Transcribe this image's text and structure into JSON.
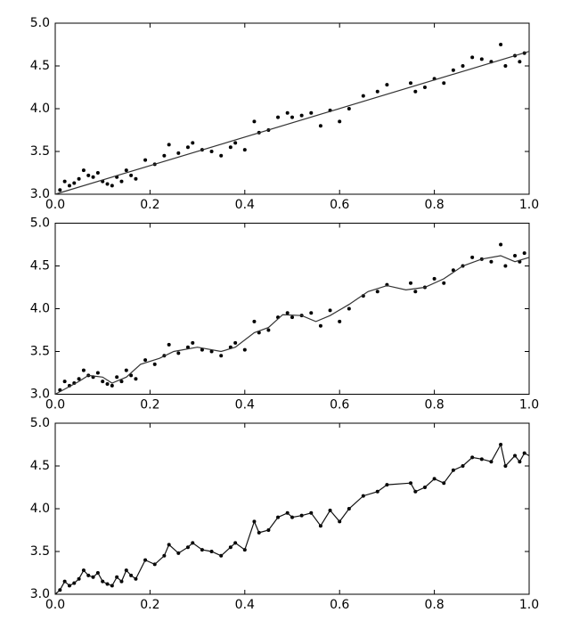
{
  "chart_data": [
    {
      "type": "scatter",
      "xlim": [
        0,
        1
      ],
      "ylim": [
        3,
        5
      ],
      "xticks": [
        {
          "value": 0,
          "label": "0.0"
        },
        0.2,
        0.4,
        0.6,
        0.8,
        {
          "value": 1,
          "label": "1.0"
        }
      ],
      "yticks": [
        {
          "value": 3,
          "label": "3.0"
        },
        3.5,
        {
          "value": 4,
          "label": "4.0"
        },
        4.5,
        {
          "value": 5,
          "label": "5.0"
        }
      ],
      "series": [
        {
          "type": "scatter",
          "color": "#000000",
          "x": [
            0.01,
            0.02,
            0.03,
            0.04,
            0.05,
            0.06,
            0.07,
            0.08,
            0.09,
            0.1,
            0.11,
            0.12,
            0.13,
            0.14,
            0.15,
            0.16,
            0.17,
            0.19,
            0.21,
            0.23,
            0.24,
            0.26,
            0.28,
            0.29,
            0.31,
            0.33,
            0.35,
            0.37,
            0.38,
            0.4,
            0.42,
            0.43,
            0.45,
            0.47,
            0.49,
            0.5,
            0.52,
            0.54,
            0.56,
            0.58,
            0.6,
            0.62,
            0.65,
            0.68,
            0.7,
            0.75,
            0.76,
            0.78,
            0.8,
            0.82,
            0.84,
            0.86,
            0.88,
            0.9,
            0.92,
            0.94,
            0.95,
            0.97,
            0.98,
            0.99
          ],
          "values": [
            3.05,
            3.15,
            3.1,
            3.13,
            3.18,
            3.28,
            3.22,
            3.2,
            3.25,
            3.15,
            3.12,
            3.1,
            3.2,
            3.15,
            3.28,
            3.22,
            3.18,
            3.4,
            3.35,
            3.45,
            3.58,
            3.48,
            3.55,
            3.6,
            3.52,
            3.5,
            3.45,
            3.55,
            3.6,
            3.52,
            3.85,
            3.72,
            3.75,
            3.9,
            3.95,
            3.9,
            3.92,
            3.95,
            3.8,
            3.98,
            3.85,
            4.0,
            4.15,
            4.2,
            4.28,
            4.3,
            4.2,
            4.25,
            4.35,
            4.3,
            4.45,
            4.5,
            4.6,
            4.58,
            4.55,
            4.75,
            4.5,
            4.62,
            4.55,
            4.65
          ]
        },
        {
          "type": "line",
          "color": "#333333",
          "x": [
            0,
            1
          ],
          "values": [
            3.0,
            4.67
          ]
        }
      ]
    },
    {
      "type": "scatter",
      "xlim": [
        0,
        1
      ],
      "ylim": [
        3,
        5
      ],
      "xticks": [
        {
          "value": 0,
          "label": "0.0"
        },
        0.2,
        0.4,
        0.6,
        0.8,
        {
          "value": 1,
          "label": "1.0"
        }
      ],
      "yticks": [
        {
          "value": 3,
          "label": "3.0"
        },
        3.5,
        {
          "value": 4,
          "label": "4.0"
        },
        4.5,
        {
          "value": 5,
          "label": "5.0"
        }
      ],
      "series": [
        {
          "type": "scatter",
          "color": "#000000",
          "x": [
            0.01,
            0.02,
            0.03,
            0.04,
            0.05,
            0.06,
            0.07,
            0.08,
            0.09,
            0.1,
            0.11,
            0.12,
            0.13,
            0.14,
            0.15,
            0.16,
            0.17,
            0.19,
            0.21,
            0.23,
            0.24,
            0.26,
            0.28,
            0.29,
            0.31,
            0.33,
            0.35,
            0.37,
            0.38,
            0.4,
            0.42,
            0.43,
            0.45,
            0.47,
            0.49,
            0.5,
            0.52,
            0.54,
            0.56,
            0.58,
            0.6,
            0.62,
            0.65,
            0.68,
            0.7,
            0.75,
            0.76,
            0.78,
            0.8,
            0.82,
            0.84,
            0.86,
            0.88,
            0.9,
            0.92,
            0.94,
            0.95,
            0.97,
            0.98,
            0.99
          ],
          "values": [
            3.05,
            3.15,
            3.1,
            3.13,
            3.18,
            3.28,
            3.22,
            3.2,
            3.25,
            3.15,
            3.12,
            3.1,
            3.2,
            3.15,
            3.28,
            3.22,
            3.18,
            3.4,
            3.35,
            3.45,
            3.58,
            3.48,
            3.55,
            3.6,
            3.52,
            3.5,
            3.45,
            3.55,
            3.6,
            3.52,
            3.85,
            3.72,
            3.75,
            3.9,
            3.95,
            3.9,
            3.92,
            3.95,
            3.8,
            3.98,
            3.85,
            4.0,
            4.15,
            4.2,
            4.28,
            4.3,
            4.2,
            4.25,
            4.35,
            4.3,
            4.45,
            4.5,
            4.6,
            4.58,
            4.55,
            4.75,
            4.5,
            4.62,
            4.55,
            4.65
          ]
        },
        {
          "type": "line",
          "color": "#333333",
          "x": [
            0,
            0.05,
            0.07,
            0.1,
            0.12,
            0.15,
            0.18,
            0.22,
            0.25,
            0.3,
            0.35,
            0.38,
            0.42,
            0.45,
            0.48,
            0.52,
            0.55,
            0.58,
            0.62,
            0.66,
            0.7,
            0.74,
            0.78,
            0.82,
            0.86,
            0.9,
            0.94,
            0.97,
            1.0
          ],
          "values": [
            3.0,
            3.15,
            3.22,
            3.2,
            3.13,
            3.2,
            3.35,
            3.42,
            3.5,
            3.55,
            3.5,
            3.55,
            3.72,
            3.78,
            3.93,
            3.92,
            3.85,
            3.92,
            4.05,
            4.2,
            4.27,
            4.22,
            4.25,
            4.35,
            4.5,
            4.58,
            4.62,
            4.55,
            4.6
          ]
        }
      ]
    },
    {
      "type": "scatter",
      "xlim": [
        0,
        1
      ],
      "ylim": [
        3,
        5
      ],
      "xticks": [
        {
          "value": 0,
          "label": "0.0"
        },
        0.2,
        0.4,
        0.6,
        0.8,
        {
          "value": 1,
          "label": "1.0"
        }
      ],
      "yticks": [
        {
          "value": 3,
          "label": "3.0"
        },
        3.5,
        {
          "value": 4,
          "label": "4.0"
        },
        4.5,
        {
          "value": 5,
          "label": "5.0"
        }
      ],
      "series": [
        {
          "type": "scatter",
          "color": "#000000",
          "x": [
            0.01,
            0.02,
            0.03,
            0.04,
            0.05,
            0.06,
            0.07,
            0.08,
            0.09,
            0.1,
            0.11,
            0.12,
            0.13,
            0.14,
            0.15,
            0.16,
            0.17,
            0.19,
            0.21,
            0.23,
            0.24,
            0.26,
            0.28,
            0.29,
            0.31,
            0.33,
            0.35,
            0.37,
            0.38,
            0.4,
            0.42,
            0.43,
            0.45,
            0.47,
            0.49,
            0.5,
            0.52,
            0.54,
            0.56,
            0.58,
            0.6,
            0.62,
            0.65,
            0.68,
            0.7,
            0.75,
            0.76,
            0.78,
            0.8,
            0.82,
            0.84,
            0.86,
            0.88,
            0.9,
            0.92,
            0.94,
            0.95,
            0.97,
            0.98,
            0.99
          ],
          "values": [
            3.05,
            3.15,
            3.1,
            3.13,
            3.18,
            3.28,
            3.22,
            3.2,
            3.25,
            3.15,
            3.12,
            3.1,
            3.2,
            3.15,
            3.28,
            3.22,
            3.18,
            3.4,
            3.35,
            3.45,
            3.58,
            3.48,
            3.55,
            3.6,
            3.52,
            3.5,
            3.45,
            3.55,
            3.6,
            3.52,
            3.85,
            3.72,
            3.75,
            3.9,
            3.95,
            3.9,
            3.92,
            3.95,
            3.8,
            3.98,
            3.85,
            4.0,
            4.15,
            4.2,
            4.28,
            4.3,
            4.2,
            4.25,
            4.35,
            4.3,
            4.45,
            4.5,
            4.6,
            4.58,
            4.55,
            4.75,
            4.5,
            4.62,
            4.55,
            4.65
          ]
        },
        {
          "type": "line",
          "color": "#111111",
          "x": [
            0,
            0.01,
            0.02,
            0.03,
            0.04,
            0.05,
            0.06,
            0.07,
            0.08,
            0.09,
            0.1,
            0.11,
            0.12,
            0.13,
            0.14,
            0.15,
            0.16,
            0.17,
            0.19,
            0.21,
            0.23,
            0.24,
            0.26,
            0.28,
            0.29,
            0.31,
            0.33,
            0.35,
            0.37,
            0.38,
            0.4,
            0.42,
            0.43,
            0.45,
            0.47,
            0.49,
            0.5,
            0.52,
            0.54,
            0.56,
            0.58,
            0.6,
            0.62,
            0.65,
            0.68,
            0.7,
            0.75,
            0.76,
            0.78,
            0.8,
            0.82,
            0.84,
            0.86,
            0.88,
            0.9,
            0.92,
            0.94,
            0.95,
            0.97,
            0.98,
            0.99,
            1.0
          ],
          "values": [
            3.0,
            3.05,
            3.15,
            3.1,
            3.13,
            3.18,
            3.28,
            3.22,
            3.2,
            3.25,
            3.15,
            3.12,
            3.1,
            3.2,
            3.15,
            3.28,
            3.22,
            3.18,
            3.4,
            3.35,
            3.45,
            3.58,
            3.48,
            3.55,
            3.6,
            3.52,
            3.5,
            3.45,
            3.55,
            3.6,
            3.52,
            3.85,
            3.72,
            3.75,
            3.9,
            3.95,
            3.9,
            3.92,
            3.95,
            3.8,
            3.98,
            3.85,
            4.0,
            4.15,
            4.2,
            4.28,
            4.3,
            4.2,
            4.25,
            4.35,
            4.3,
            4.45,
            4.5,
            4.6,
            4.58,
            4.55,
            4.75,
            4.5,
            4.62,
            4.55,
            4.65,
            4.62
          ]
        }
      ]
    }
  ]
}
